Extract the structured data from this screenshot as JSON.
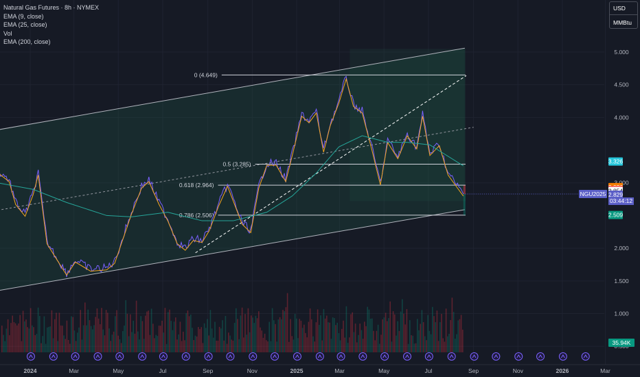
{
  "header": {
    "title": "Natural Gas Futures · 8h · NYMEX",
    "indicators": [
      "EMA (9, close)",
      "EMA (25, close)",
      "Vol",
      "EMA (200, close)"
    ]
  },
  "units": {
    "currency": "USD",
    "unit": "MMBtu"
  },
  "chart_data": {
    "type": "line",
    "symbol": "NGU2025",
    "y_axis_ticks": [
      "5.000",
      "4.500",
      "4.000",
      "3.000",
      "2.000",
      "1.500",
      "1.000",
      "0.500"
    ],
    "ylim": [
      0.43,
      5.45
    ],
    "x_axis_ticks": [
      "2024",
      "Mar",
      "May",
      "Jul",
      "Sep",
      "Nov",
      "2025",
      "Mar",
      "May",
      "Jul",
      "Sep",
      "Nov",
      "2026",
      "Mar"
    ],
    "price_series": {
      "x": [
        "2023-11-17",
        "2023-12-03",
        "2023-12-12",
        "2023-12-25",
        "2024-01-05",
        "2024-01-12",
        "2024-01-24",
        "2024-02-07",
        "2024-02-20",
        "2024-03-03",
        "2024-03-24",
        "2024-04-15",
        "2024-04-26",
        "2024-05-19",
        "2024-06-02",
        "2024-06-12",
        "2024-06-26",
        "2024-07-08",
        "2024-07-21",
        "2024-08-01",
        "2024-08-12",
        "2024-08-24",
        "2024-09-03",
        "2024-09-16",
        "2024-09-28",
        "2024-10-06",
        "2024-10-18",
        "2024-10-30",
        "2024-11-10",
        "2024-11-21",
        "2024-12-04",
        "2024-12-17",
        "2024-12-26",
        "2025-01-08",
        "2025-01-18",
        "2025-01-28",
        "2025-02-07",
        "2025-02-16",
        "2025-02-28",
        "2025-03-10",
        "2025-03-20",
        "2025-04-01",
        "2025-04-14",
        "2025-04-26",
        "2025-05-06",
        "2025-05-20",
        "2025-06-02",
        "2025-06-15",
        "2025-06-23",
        "2025-07-03",
        "2025-07-16",
        "2025-07-28",
        "2025-08-10",
        "2025-08-18"
      ],
      "values": [
        3.19,
        3.05,
        2.7,
        2.52,
        2.85,
        3.15,
        2.1,
        1.85,
        1.62,
        1.82,
        1.68,
        1.7,
        1.8,
        2.55,
        2.95,
        3.05,
        2.7,
        2.45,
        2.1,
        2.0,
        2.15,
        2.12,
        2.3,
        2.68,
        2.98,
        2.75,
        2.4,
        2.27,
        2.95,
        3.3,
        3.3,
        3.05,
        3.45,
        4.05,
        3.95,
        4.1,
        3.5,
        3.9,
        4.25,
        4.62,
        4.2,
        4.1,
        3.55,
        3.0,
        3.65,
        3.4,
        3.75,
        3.55,
        4.05,
        3.45,
        3.6,
        3.15,
        2.95,
        2.829
      ]
    },
    "ema200_series": {
      "x": [
        "2023-11-17",
        "2024-01-05",
        "2024-02-20",
        "2024-04-15",
        "2024-05-19",
        "2024-07-08",
        "2024-08-24",
        "2024-10-06",
        "2024-11-21",
        "2024-12-26",
        "2025-01-28",
        "2025-02-28",
        "2025-04-01",
        "2025-05-06",
        "2025-06-02",
        "2025-07-03",
        "2025-08-18"
      ],
      "values": [
        3.0,
        2.9,
        2.7,
        2.5,
        2.48,
        2.55,
        2.42,
        2.42,
        2.55,
        2.8,
        3.15,
        3.55,
        3.72,
        3.62,
        3.62,
        3.58,
        3.26
      ]
    },
    "fibonacci_levels": [
      {
        "label": "0 (4.649)",
        "value": 4.649
      },
      {
        "label": "0.5 (3.285)",
        "value": 3.285
      },
      {
        "label": "0.618 (2.964)",
        "value": 2.964
      },
      {
        "label": "0.786 (2.506)",
        "value": 2.506
      }
    ],
    "price_labels": [
      {
        "text": "3.326",
        "value": 3.326,
        "color": "#26c6da"
      },
      {
        "text": "2.936",
        "value": 2.936,
        "color": "#f57c00"
      },
      {
        "text": "2.888",
        "value": 2.888,
        "color": "#f23645"
      },
      {
        "text": "2.854",
        "value": 2.854,
        "color": "#ffffff"
      },
      {
        "text": "2.829",
        "value": 2.829,
        "color": "#5b5fc7"
      },
      {
        "text": "2.509",
        "value": 2.509,
        "color": "#089981"
      }
    ],
    "countdown": "03:44:12",
    "volume_label": "35.94K",
    "channel": {
      "upper": [
        {
          "x": "2023-11-17",
          "y": 3.81
        },
        {
          "x": "2025-08-20",
          "y": 5.06
        }
      ],
      "lower": [
        {
          "x": "2023-11-17",
          "y": 1.35
        },
        {
          "x": "2025-08-20",
          "y": 2.59
        }
      ],
      "mid": [
        {
          "x": "2023-11-17",
          "y": 2.58
        },
        {
          "x": "2025-09-01",
          "y": 3.85
        }
      ]
    },
    "trendline": [
      {
        "x": "2024-08-15",
        "y": 1.93
      },
      {
        "x": "2025-08-22",
        "y": 4.64
      }
    ],
    "colors": {
      "price": "#7b61ff",
      "ema9": "#f5a623",
      "ema200": "#26a69a",
      "up": "#089981",
      "down": "#f23645"
    }
  }
}
